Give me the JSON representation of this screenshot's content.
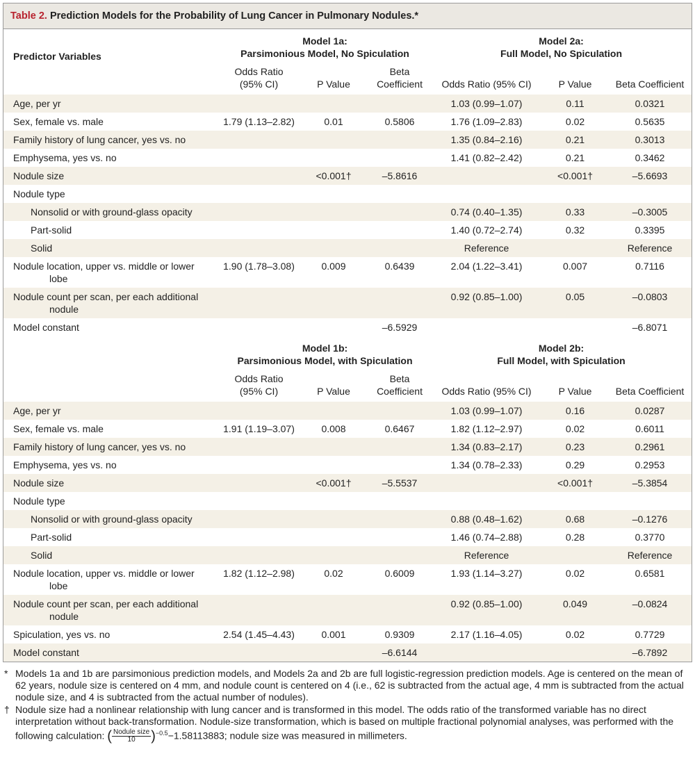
{
  "title": {
    "label": "Table 2.",
    "text": "Prediction Models for the Probability of Lung Cancer in Pulmonary Nodules.*"
  },
  "sections": [
    {
      "predictor_header": "Predictor Variables",
      "models": [
        {
          "name": "Model 1a:",
          "subtitle": "Parsimonious Model, No Spiculation",
          "columns": [
            "Odds Ratio (95% CI)",
            "P Value",
            "Beta Coefficient"
          ]
        },
        {
          "name": "Model 2a:",
          "subtitle": "Full Model, No Spiculation",
          "columns": [
            "Odds Ratio (95% CI)",
            "P Value",
            "Beta Coefficient"
          ]
        }
      ],
      "rows": [
        {
          "label": "Age, per yr",
          "cells": [
            null,
            null,
            null,
            "1.03 (0.99–1.07)",
            "0.11",
            "0.0321"
          ]
        },
        {
          "label": "Sex, female vs. male",
          "cells": [
            "1.79 (1.13–2.82)",
            "0.01",
            "0.5806",
            "1.76 (1.09–2.83)",
            "0.02",
            "0.5635"
          ]
        },
        {
          "label": "Family history of lung cancer, yes vs. no",
          "cells": [
            null,
            null,
            null,
            "1.35 (0.84–2.16)",
            "0.21",
            "0.3013"
          ]
        },
        {
          "label": "Emphysema, yes vs. no",
          "cells": [
            null,
            null,
            null,
            "1.41 (0.82–2.42)",
            "0.21",
            "0.3462"
          ]
        },
        {
          "label": "Nodule size",
          "cells": [
            null,
            "<0.001†",
            "–5.8616",
            null,
            "<0.001†",
            "–5.6693"
          ]
        },
        {
          "label": "Nodule type",
          "subrows": [
            {
              "label": "Nonsolid or with ground-glass opacity",
              "cells": [
                null,
                null,
                null,
                "0.74 (0.40–1.35)",
                "0.33",
                "–0.3005"
              ]
            },
            {
              "label": "Part-solid",
              "cells": [
                null,
                null,
                null,
                "1.40 (0.72–2.74)",
                "0.32",
                "0.3395"
              ]
            },
            {
              "label": "Solid",
              "cells": [
                null,
                null,
                null,
                "Reference",
                null,
                "Reference"
              ]
            }
          ]
        },
        {
          "label": "Nodule location, upper vs. middle or lower lobe",
          "cells": [
            "1.90 (1.78–3.08)",
            "0.009",
            "0.6439",
            "2.04 (1.22–3.41)",
            "0.007",
            "0.7116"
          ]
        },
        {
          "label": "Nodule count per scan, per each additional nodule",
          "cells": [
            null,
            null,
            null,
            "0.92 (0.85–1.00)",
            "0.05",
            "–0.0803"
          ]
        },
        {
          "label": "Model constant",
          "cells": [
            null,
            null,
            "–6.5929",
            null,
            null,
            "–6.8071"
          ]
        }
      ]
    },
    {
      "models": [
        {
          "name": "Model 1b:",
          "subtitle": "Parsimonious Model, with Spiculation",
          "columns": [
            "Odds Ratio (95% CI)",
            "P Value",
            "Beta Coefficient"
          ]
        },
        {
          "name": "Model 2b:",
          "subtitle": "Full Model, with Spiculation",
          "columns": [
            "Odds Ratio (95% CI)",
            "P Value",
            "Beta Coefficient"
          ]
        }
      ],
      "rows": [
        {
          "label": "Age, per yr",
          "cells": [
            null,
            null,
            null,
            "1.03 (0.99–1.07)",
            "0.16",
            "0.0287"
          ]
        },
        {
          "label": "Sex, female vs. male",
          "cells": [
            "1.91 (1.19–3.07)",
            "0.008",
            "0.6467",
            "1.82 (1.12–2.97)",
            "0.02",
            "0.6011"
          ]
        },
        {
          "label": "Family history of lung cancer, yes vs. no",
          "cells": [
            null,
            null,
            null,
            "1.34 (0.83–2.17)",
            "0.23",
            "0.2961"
          ]
        },
        {
          "label": "Emphysema, yes vs. no",
          "cells": [
            null,
            null,
            null,
            "1.34 (0.78–2.33)",
            "0.29",
            "0.2953"
          ]
        },
        {
          "label": "Nodule size",
          "cells": [
            null,
            "<0.001†",
            "–5.5537",
            null,
            "<0.001†",
            "–5.3854"
          ]
        },
        {
          "label": "Nodule type",
          "subrows": [
            {
              "label": "Nonsolid or with ground-glass opacity",
              "cells": [
                null,
                null,
                null,
                "0.88 (0.48–1.62)",
                "0.68",
                "–0.1276"
              ]
            },
            {
              "label": "Part-solid",
              "cells": [
                null,
                null,
                null,
                "1.46 (0.74–2.88)",
                "0.28",
                "0.3770"
              ]
            },
            {
              "label": "Solid",
              "cells": [
                null,
                null,
                null,
                "Reference",
                null,
                "Reference"
              ]
            }
          ]
        },
        {
          "label": "Nodule location, upper vs. middle or lower lobe",
          "cells": [
            "1.82 (1.12–2.98)",
            "0.02",
            "0.6009",
            "1.93 (1.14–3.27)",
            "0.02",
            "0.6581"
          ]
        },
        {
          "label": "Nodule count per scan, per each additional nodule",
          "cells": [
            null,
            null,
            null,
            "0.92 (0.85–1.00)",
            "0.049",
            "–0.0824"
          ]
        },
        {
          "label": "Spiculation, yes vs. no",
          "cells": [
            "2.54 (1.45–4.43)",
            "0.001",
            "0.9309",
            "2.17 (1.16–4.05)",
            "0.02",
            "0.7729"
          ]
        },
        {
          "label": "Model constant",
          "cells": [
            null,
            null,
            "–6.6144",
            null,
            null,
            "–6.7892"
          ]
        }
      ]
    }
  ],
  "footnotes": [
    {
      "symbol": "*",
      "text": "Models 1a and 1b are parsimonious prediction models, and Models 2a and 2b are full logistic-regression prediction models. Age is centered on the mean of 62 years, nodule size is centered on 4 mm, and nodule count is centered on 4 (i.e., 62 is subtracted from the actual age, 4 mm is subtracted from the actual nodule size, and 4 is subtracted from the actual number of nodules)."
    },
    {
      "symbol": "†",
      "text": "Nodule size had a nonlinear relationship with lung cancer and is transformed in this model. The odds ratio of the transformed variable has no direct interpretation without back-transformation. Nodule-size transformation, which is based on multiple fractional polynomial analyses, was performed with the following calculation:",
      "formula": {
        "numerator": "Nodule size",
        "denominator": "10",
        "exponent": "−0.5"
      },
      "text_after": "−1.58113883; nodule size was measured in millimeters."
    }
  ]
}
